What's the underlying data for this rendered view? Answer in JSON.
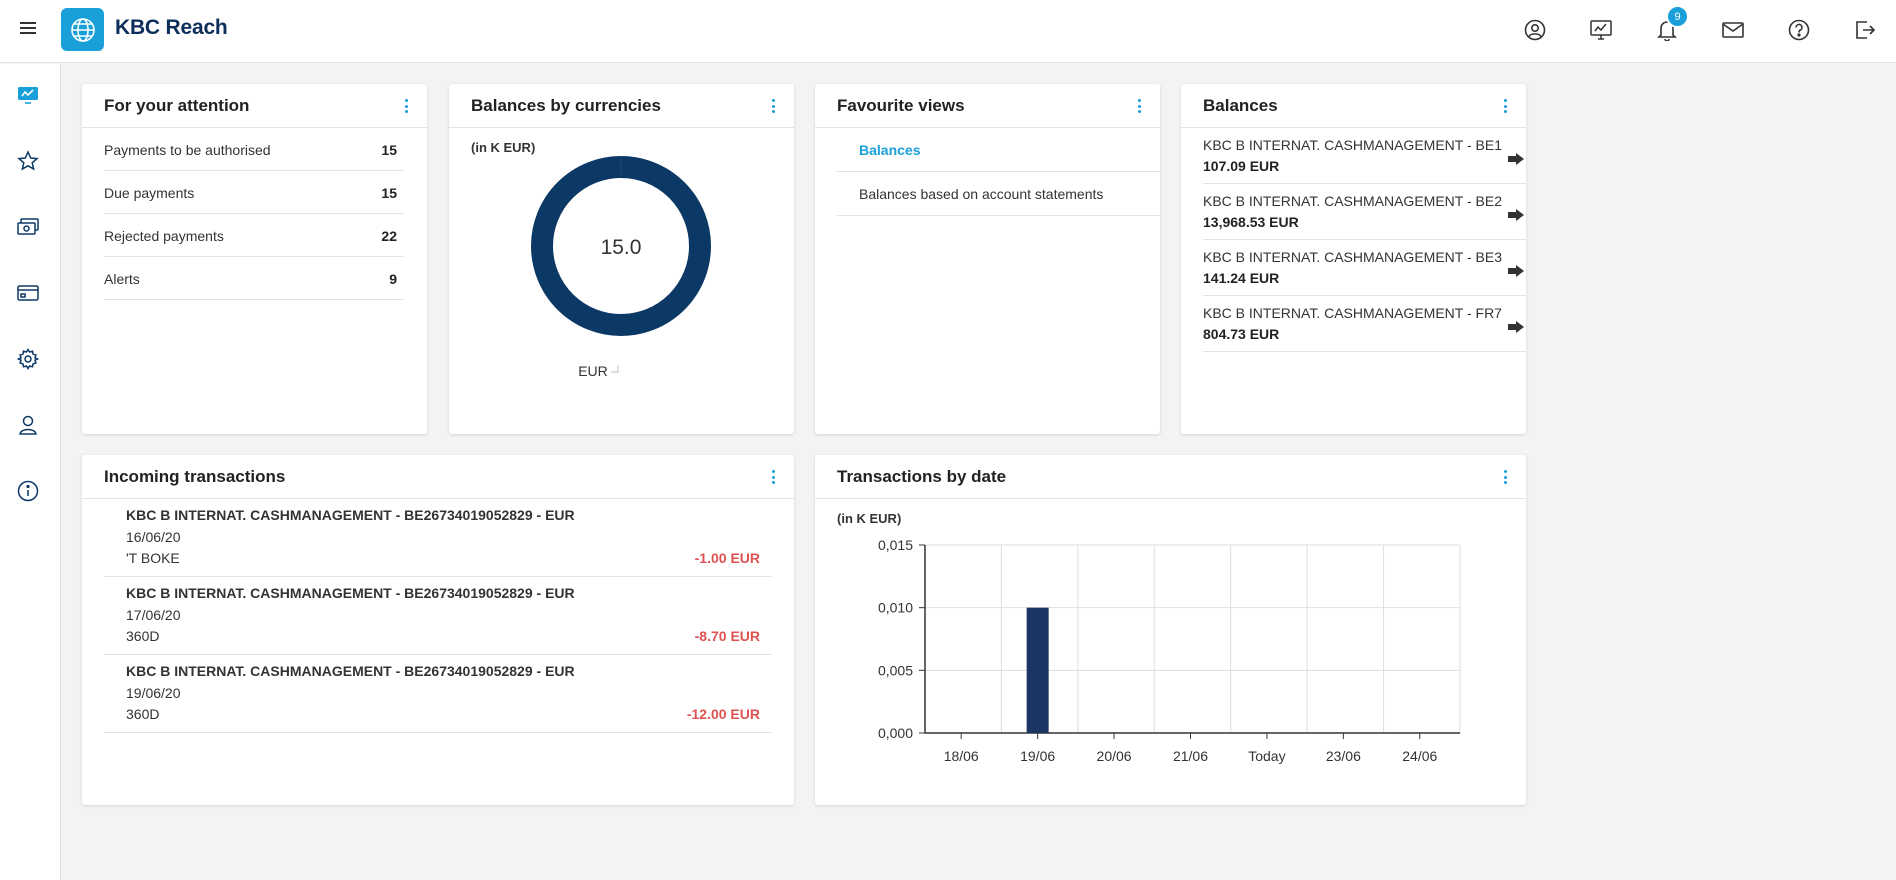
{
  "app": {
    "title": "KBC Reach"
  },
  "header": {
    "notifications_count": "9"
  },
  "icons": {
    "menu": "hamburger-icon",
    "logo": "globe-icon",
    "profile": "user-circle-icon",
    "dashboard": "dashboard-icon",
    "notifications": "bell-icon",
    "messages": "envelope-icon",
    "help": "help-icon",
    "logout": "logout-icon"
  },
  "sidebar": {
    "items": [
      {
        "icon": "dashboard-icon",
        "active": true
      },
      {
        "icon": "star-icon"
      },
      {
        "icon": "payments-icon"
      },
      {
        "icon": "card-icon"
      },
      {
        "icon": "gear-icon"
      },
      {
        "icon": "user-icon"
      },
      {
        "icon": "info-icon"
      }
    ]
  },
  "attention": {
    "title": "For your attention",
    "items": [
      {
        "label": "Payments to be authorised",
        "count": "15"
      },
      {
        "label": "Due payments",
        "count": "15"
      },
      {
        "label": "Rejected payments",
        "count": "22"
      },
      {
        "label": "Alerts",
        "count": "9"
      }
    ]
  },
  "currencies": {
    "title": "Balances by currencies",
    "unit": "(in K EUR)",
    "center_value": "15.0",
    "legend": "EUR"
  },
  "favourites": {
    "title": "Favourite views",
    "items": [
      {
        "label": "Balances",
        "active": true
      },
      {
        "label": "Balances based on account statements"
      }
    ]
  },
  "balances": {
    "title": "Balances",
    "items": [
      {
        "account": "KBC B INTERNAT. CASHMANAGEMENT - BE1",
        "amount": "107.09 EUR"
      },
      {
        "account": "KBC B INTERNAT. CASHMANAGEMENT - BE2",
        "amount": "13,968.53 EUR"
      },
      {
        "account": "KBC B INTERNAT. CASHMANAGEMENT - BE3",
        "amount": "141.24 EUR"
      },
      {
        "account": "KBC B INTERNAT. CASHMANAGEMENT - FR7",
        "amount": "804.73 EUR"
      }
    ]
  },
  "incoming": {
    "title": "Incoming transactions",
    "items": [
      {
        "account": "KBC B INTERNAT. CASHMANAGEMENT - BE26734019052829 - EUR",
        "date": "16/06/20",
        "description": "'T BOKE",
        "amount": "-1.00 EUR"
      },
      {
        "account": "KBC B INTERNAT. CASHMANAGEMENT - BE26734019052829 - EUR",
        "date": "17/06/20",
        "description": "360D",
        "amount": "-8.70 EUR"
      },
      {
        "account": "KBC B INTERNAT. CASHMANAGEMENT - BE26734019052829 - EUR",
        "date": "19/06/20",
        "description": "360D",
        "amount": "-12.00 EUR"
      }
    ]
  },
  "by_date": {
    "title": "Transactions by date",
    "unit": "(in K EUR)"
  },
  "colors": {
    "accent": "#1aa0d8",
    "navy": "#0c3866",
    "bar": "#1b3461",
    "negative": "#e05252"
  },
  "chart_data": [
    {
      "type": "pie",
      "title": "Balances by currencies",
      "unit": "(in K EUR)",
      "categories": [
        "EUR"
      ],
      "values": [
        15.0
      ],
      "center_label": "15.0"
    },
    {
      "type": "bar",
      "title": "Transactions by date",
      "ylabel": "(in K EUR)",
      "categories": [
        "18/06",
        "19/06",
        "20/06",
        "21/06",
        "Today",
        "23/06",
        "24/06"
      ],
      "values": [
        0,
        0.01,
        0,
        0,
        0,
        0,
        0
      ],
      "ylim": [
        0,
        0.015
      ],
      "yticks": [
        "0,000",
        "0,005",
        "0,010",
        "0,015"
      ],
      "grid": true
    }
  ]
}
